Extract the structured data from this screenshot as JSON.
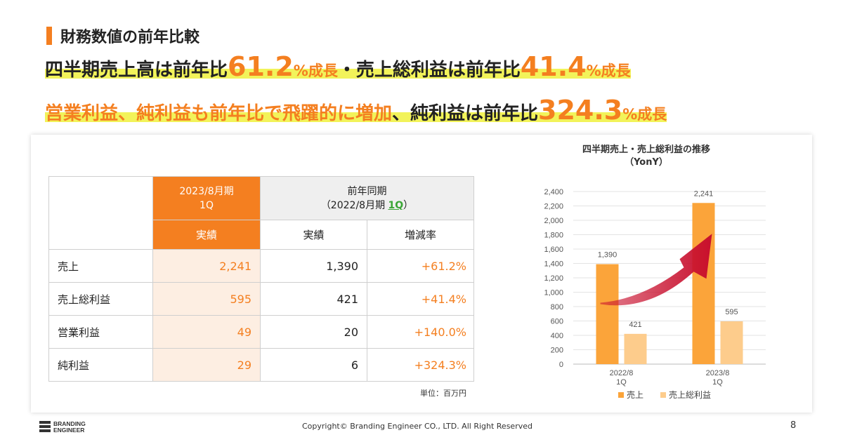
{
  "section_title": "財務数値の前年比較",
  "headline1": {
    "part1": "四半期売上高は前年比",
    "value1": "61.2",
    "pct1": "%成長",
    "part2": "・売上総利益は前年比",
    "value2": "41.4",
    "pct2": "%成長"
  },
  "headline2": {
    "part1": "営業利益、純利益も前年比で飛躍的に増加",
    "part2": "、純利益は前年比",
    "value": "324.3",
    "pct": "%成長"
  },
  "table": {
    "current_period_line1": "2023/8月期",
    "current_period_line2": "1Q",
    "prev_period_line1": "前年同期",
    "prev_period_open": "（2022/8月期 ",
    "prev_period_q": "1Q",
    "prev_period_close": "）",
    "col_actual_current": "実績",
    "col_actual_prev": "実績",
    "col_rate": "増減率",
    "rows": [
      {
        "label": "売上",
        "current": "2,241",
        "prev": "1,390",
        "rate": "+61.2%"
      },
      {
        "label": "売上総利益",
        "current": "595",
        "prev": "421",
        "rate": "+41.4%"
      },
      {
        "label": "営業利益",
        "current": "49",
        "prev": "20",
        "rate": "+140.0%"
      },
      {
        "label": "純利益",
        "current": "29",
        "prev": "6",
        "rate": "+324.3%"
      }
    ],
    "unit": "単位：百万円"
  },
  "chart_data": {
    "type": "bar",
    "title": "四半期売上・売上総利益の推移",
    "subtitle": "（YonY）",
    "categories": [
      [
        "2022/8",
        "1Q"
      ],
      [
        "2023/8",
        "1Q"
      ]
    ],
    "series": [
      {
        "name": "売上",
        "values": [
          1390,
          2241
        ],
        "labels": [
          "1,390",
          "2,241"
        ],
        "color": "#fba43a"
      },
      {
        "name": "売上総利益",
        "values": [
          421,
          595
        ],
        "labels": [
          "421",
          "595"
        ],
        "color": "#fdcc8c"
      }
    ],
    "ylim": [
      0,
      2400
    ],
    "yticks": [
      "0",
      "200",
      "400",
      "600",
      "800",
      "1,000",
      "1,200",
      "1,400",
      "1,600",
      "1,800",
      "2,000",
      "2,200",
      "2,400"
    ],
    "ytick_values": [
      0,
      200,
      400,
      600,
      800,
      1000,
      1200,
      1400,
      1600,
      1800,
      2000,
      2200,
      2400
    ],
    "grid": true,
    "legend": "bottom",
    "arrow_color": "#c8102e"
  },
  "footer": {
    "logo_line1": "BRANDING",
    "logo_line2": "ENGINEER",
    "copyright": "Copyright© Branding Engineer CO., LTD. All Right Reserved",
    "page": "8"
  },
  "colors": {
    "accent": "#f47f20",
    "highlight": "#f2f35a",
    "green": "#3aa535"
  }
}
